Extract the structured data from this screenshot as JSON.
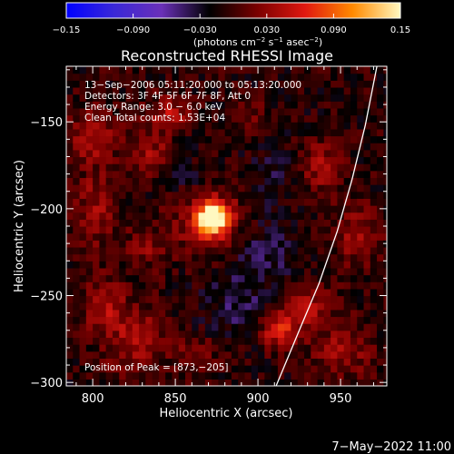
{
  "chart_data": {
    "type": "heatmap",
    "title": "Reconstructed RHESSI Image",
    "colorbar": {
      "min": -0.15,
      "max": 0.15,
      "ticks": [
        "−0.15",
        "−0.090",
        "−0.030",
        "0.030",
        "0.090",
        "0.15"
      ],
      "label_parts": [
        "(photons cm",
        "−2",
        " s",
        "−1",
        " asec",
        "−2",
        ")"
      ],
      "colors": [
        "#0000ff",
        "#3a28d8",
        "#6a30b8",
        "#000000",
        "#7a0000",
        "#e01810",
        "#ff8a00",
        "#fff8c0"
      ]
    },
    "xlabel": "Heliocentric X (arcsec)",
    "ylabel": "Heliocentric Y (arcsec)",
    "xlim": [
      784,
      978
    ],
    "ylim": [
      -302,
      -118
    ],
    "xticks": [
      {
        "v": 800,
        "label": "800"
      },
      {
        "v": 850,
        "label": "850"
      },
      {
        "v": 900,
        "label": "900"
      },
      {
        "v": 950,
        "label": "950"
      }
    ],
    "yticks": [
      {
        "v": -150,
        "label": "−150"
      },
      {
        "v": -200,
        "label": "−200"
      },
      {
        "v": -250,
        "label": "−250"
      },
      {
        "v": -300,
        "label": "−300"
      }
    ],
    "info_lines": [
      "13−Sep−2006 05:11:20.000 to 05:13:20.000",
      "Detectors: 3F 4F 5F 6F 7F 8F, Att 0",
      "Energy Range: 3.0 − 6.0 keV",
      "Clean     Total counts: 1.53E+04"
    ],
    "peak_label": "Position of Peak = [873,−205]",
    "peak": [
      873,
      -205
    ],
    "limb": [
      [
        911,
        -302
      ],
      [
        925,
        -270
      ],
      [
        937,
        -243
      ],
      [
        948,
        -213
      ],
      [
        957,
        -183
      ],
      [
        965,
        -152
      ],
      [
        972,
        -118
      ]
    ],
    "sources": [
      {
        "x": 873,
        "y": -205,
        "sx": 7,
        "sy": 6,
        "amp": 0.16
      },
      {
        "x": 870,
        "y": -208,
        "sx": 15,
        "sy": 13,
        "amp": 0.05
      },
      {
        "x": 846,
        "y": -145,
        "sx": 9,
        "sy": 7,
        "amp": 0.05
      },
      {
        "x": 835,
        "y": -168,
        "sx": 9,
        "sy": 8,
        "amp": 0.04
      },
      {
        "x": 800,
        "y": -158,
        "sx": 10,
        "sy": 10,
        "amp": 0.05
      },
      {
        "x": 802,
        "y": -200,
        "sx": 9,
        "sy": 16,
        "amp": 0.04
      },
      {
        "x": 832,
        "y": -222,
        "sx": 9,
        "sy": 8,
        "amp": 0.03
      },
      {
        "x": 806,
        "y": -255,
        "sx": 9,
        "sy": 10,
        "amp": 0.045
      },
      {
        "x": 826,
        "y": -275,
        "sx": 13,
        "sy": 14,
        "amp": 0.045
      },
      {
        "x": 863,
        "y": -285,
        "sx": 8,
        "sy": 8,
        "amp": 0.035
      },
      {
        "x": 913,
        "y": -270,
        "sx": 8,
        "sy": 7,
        "amp": 0.07
      },
      {
        "x": 930,
        "y": -255,
        "sx": 12,
        "sy": 10,
        "amp": 0.045
      },
      {
        "x": 952,
        "y": -282,
        "sx": 12,
        "sy": 10,
        "amp": 0.04
      },
      {
        "x": 938,
        "y": -175,
        "sx": 8,
        "sy": 10,
        "amp": 0.045
      },
      {
        "x": 960,
        "y": -215,
        "sx": 10,
        "sy": 12,
        "amp": 0.04
      },
      {
        "x": 895,
        "y": -145,
        "sx": 7,
        "sy": 6,
        "amp": 0.025
      },
      {
        "x": 905,
        "y": -225,
        "sx": 16,
        "sy": 14,
        "amp": -0.03
      },
      {
        "x": 887,
        "y": -255,
        "sx": 14,
        "sy": 13,
        "amp": -0.028
      },
      {
        "x": 910,
        "y": -180,
        "sx": 10,
        "sy": 12,
        "amp": -0.02
      },
      {
        "x": 855,
        "y": -180,
        "sx": 8,
        "sy": 8,
        "amp": -0.018
      }
    ]
  },
  "footer_date": "7−May−2022 11:00"
}
